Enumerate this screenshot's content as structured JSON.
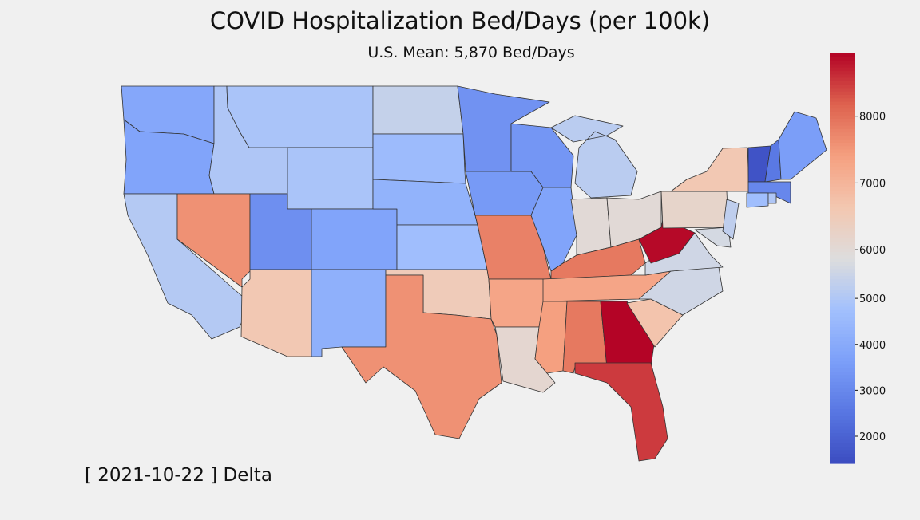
{
  "chart_data": {
    "type": "choropleth",
    "title": "COVID Hospitalization Bed/Days (per 100k)",
    "subtitle": "U.S. Mean: 5,870 Bed/Days",
    "annotation": "[ 2021-10-22 ] Delta",
    "colormap": "coolwarm",
    "clim": [
      1410,
      8940
    ],
    "center": 5870,
    "cticks": [
      2000,
      3000,
      4000,
      5000,
      6000,
      7000,
      8000
    ],
    "values": [
      3900,
      3800,
      5100,
      5000,
      7600,
      4900,
      4900,
      3200,
      3800,
      6600,
      4200,
      5400,
      4600,
      4300,
      4700,
      6500,
      7600,
      3300,
      3500,
      7800,
      7300,
      6100,
      3400,
      3800,
      5200,
      6000,
      6000,
      7900,
      7300,
      7400,
      7900,
      9000,
      8500,
      6700,
      5600,
      5600,
      8900,
      6200,
      6600,
      5700,
      5300,
      1600,
      2600,
      3600,
      3000,
      4700,
      5000
    ]
  }
}
